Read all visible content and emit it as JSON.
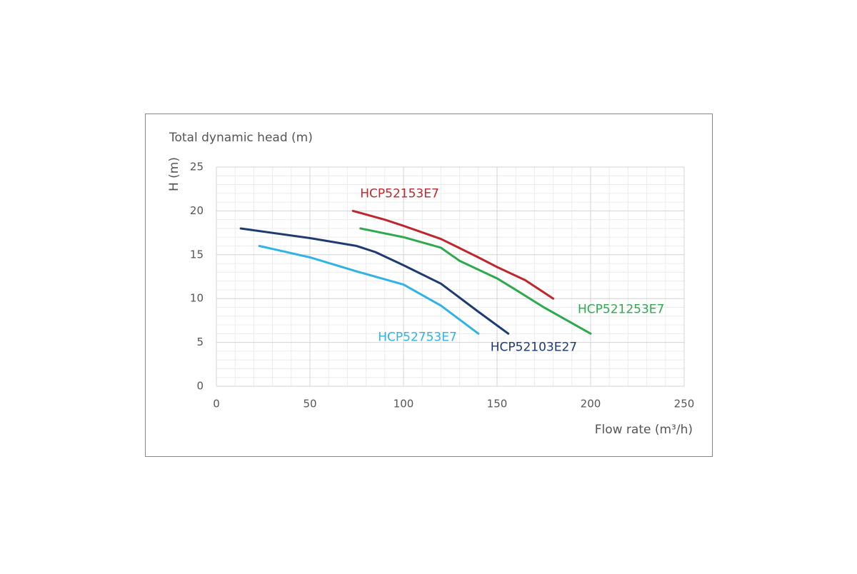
{
  "chart_data": {
    "type": "line",
    "title": "Total dynamic head (m)",
    "y_label": "H (m)",
    "x_label": "Flow rate (m³/h)",
    "xlim": [
      0,
      250
    ],
    "xticks": [
      0,
      50,
      100,
      150,
      200,
      250
    ],
    "ylim": [
      0,
      25
    ],
    "yticks": [
      0,
      5,
      10,
      15,
      20,
      25
    ],
    "grid": true,
    "series": [
      {
        "name": "HCP52153E7",
        "color": "#c0262c",
        "x": [
          73,
          90,
          100,
          120,
          140,
          150,
          165,
          180
        ],
        "values": [
          20,
          19,
          18.3,
          16.8,
          14.7,
          13.6,
          12.1,
          10
        ]
      },
      {
        "name": "HCP521253E7",
        "color": "#2eaa4e",
        "x": [
          77,
          100,
          120,
          130,
          150,
          160,
          175,
          200
        ],
        "values": [
          18,
          17,
          15.8,
          14.3,
          12.3,
          11,
          9,
          6
        ]
      },
      {
        "name": "HCP52103E27",
        "color": "#1f3a73",
        "x": [
          13,
          50,
          75,
          85,
          100,
          120,
          140,
          156
        ],
        "values": [
          18,
          16.9,
          16,
          15.3,
          13.8,
          11.7,
          8.5,
          6
        ]
      },
      {
        "name": "HCP52753E7",
        "color": "#2fb3e6",
        "x": [
          23,
          50,
          75,
          100,
          120,
          140
        ],
        "values": [
          16,
          14.7,
          13.1,
          11.6,
          9.2,
          6
        ]
      }
    ]
  }
}
